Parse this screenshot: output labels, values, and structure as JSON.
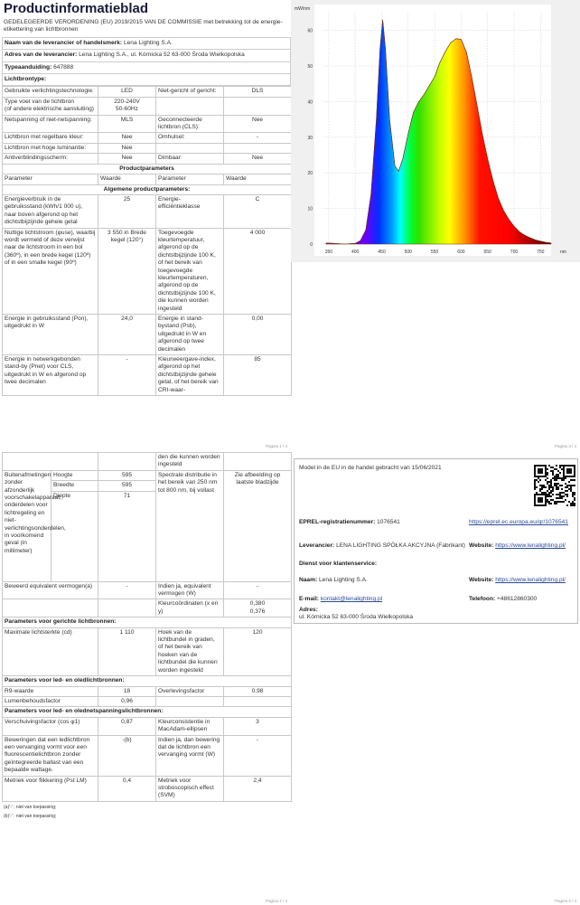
{
  "page1": {
    "title": "Productinformatieblad",
    "subtitle": "GEDELEGEERDE VERORDENING (EU) 2019/2015 VAN DE COMMISSIE met betrekking tot de energie-etikettering van lichtbronnen",
    "supplier": {
      "label": "Naam van de leverancier of handelsmerk:",
      "value": "Lena Lighting S.A."
    },
    "address": {
      "label": "Adres van de leverancier:",
      "value": "Lena Lighting S.A., ul. Kórnicka 52 63-000 Środa Wielkopolska"
    },
    "type": {
      "label": "Typeaanduiding:",
      "value": "647888"
    },
    "lichtbrontype_heading": "Lichtbrontype:",
    "light_rows": [
      [
        "Gebruikte verlichtingstechnologie:",
        "LED",
        "Niet-gericht of gericht:",
        "DLS"
      ],
      [
        "Type voet van de lichtbron\n(of andere elektrische aansluiting)",
        "220-240V\n50-60Hz",
        "",
        ""
      ],
      [
        "Netspanning of niet-netspanning:",
        "MLS",
        "Geconnecteerde lichtbron (CLS):",
        "Nee"
      ],
      [
        "Lichtbron met regelbare kleur:",
        "Nee",
        "Omhulsel:",
        "-"
      ],
      [
        "Lichtbron met hoge luminantie:",
        "Nee",
        "",
        ""
      ],
      [
        "Antiverblindingsscherm:",
        "Nee",
        "Dimbaar:",
        "Nee"
      ]
    ],
    "params_heading": "Productparameters",
    "param_headers": [
      "Parameter",
      "Waarde",
      "Parameter",
      "Waarde"
    ],
    "general_heading": "Algemene productparameters:",
    "general_rows": [
      [
        "Energieverbruik in de gebruiksstand (kWh/1 000 u), naar boven afgerond op het dichtstbijzijnde gehele getal",
        "25",
        "Energie-efficiëntieklasse",
        "C"
      ],
      [
        "Nuttige lichtstroom (φuse), waarbij wordt vermeld of deze verwijst naar de lichtstroom in een bol (360º), in een brede kegel (120º) of in een smalle kegel (90º)",
        "3 550 in Brede kegel (120°)",
        "Toegevoegde kleurtemperatuur, afgerond op de dichtstbijzijnde 100 K, of het bereik van toegevoegde kleurtemperaturen, afgerond op de dichtstbijzijnde 100 K, die kunnen worden ingesteld",
        "4 000"
      ],
      [
        "Energie in gebruiksstand (Pon), uitgedrukt in W",
        "24,0",
        "Energie in stand-bystand (Psb), uitgedrukt in W en afgerond op twee decimalen",
        "0,00"
      ],
      [
        "Energie in netwerkgebonden stand-by (Pnet) voor CLS, uitgedrukt in W en afgerond op twee decimalen",
        "-",
        "Kleurweergave-index, afgerond op het dichtstbijzijnde gehele getal, of het bereik van CRI-waar-",
        "85"
      ]
    ],
    "page_label": "Pagina 1 / 4"
  },
  "page2": {
    "top_row": [
      "",
      "",
      "den die kunnen worden ingesteld",
      ""
    ],
    "dims": {
      "label": "Buitenafmetingen zonder afzonderlijk voorschakelapparaat, onderdelen voor lichtregeling en niet-verlichtingsonderdelen, in voorkomend geval (in millimeter)",
      "items": [
        {
          "name": "Hoogte",
          "value": "595"
        },
        {
          "name": "Breedte",
          "value": "595"
        },
        {
          "name": "Diepte",
          "value": "71"
        }
      ],
      "param": "Spectrale distributie in het bereik van 250 nm tot 800 nm, bij vollast",
      "param_value": "Zie afbeelding op laatste bladzijde"
    },
    "rows": [
      [
        "Beweerd equivalent vermogen(a)",
        "-",
        "Indien ja, equivalent vermogen (W)",
        "-"
      ],
      [
        "",
        "",
        "Kleurcoördinaten (x en y)",
        "0,380\n0,376"
      ],
      {
        "section": "Parameters voor gerichte lichtbronnen:"
      },
      [
        "Maximale lichtsterkte (cd)",
        "1 110",
        "Hoek van de lichtbundel in graden, of het bereik van hoeken van de lichtbundel die kunnen worden ingesteld",
        "120"
      ],
      {
        "section": "Parameters voor led- en oledlichtbronnen:"
      },
      [
        "R9-waarde",
        "18",
        "Overlevingsfactor",
        "0,98"
      ],
      [
        "Lumenbehoudsfactor",
        "0,96",
        "",
        ""
      ],
      {
        "section": "Parameters voor led- en olednetspanningslichtbronnen:"
      },
      [
        "Verschuivingsfactor (cos φ1)",
        "0,87",
        "Kleurconsistentie in MacAdam-ellipsen",
        "3"
      ],
      [
        "Beweringen dat een ledlichtbron een vervanging vormt voor een fluorescentielichtbron zonder geïntegreerde ballast van een bepaalde wattage.",
        "-(b)",
        "Indien ja, dan bewering dat de lichtbron een vervanging vormt (W)",
        "-"
      ],
      [
        "Metriek voor flikkering (Pst LM)",
        "0,4",
        "Metriek voor stroboscopisch effect (SVM)",
        "2,4"
      ]
    ],
    "footnotes": [
      "(a)'-' : niet van toepassing;",
      "(b)'-' : niet van toepassing;"
    ],
    "page_label": "Pagina 2 / 4"
  },
  "page3": {
    "page_label": "Pagina 3 / 4"
  },
  "page4": {
    "market": "Model in de EU in de handel gebracht van 15/06/2021",
    "eprel": {
      "label": "EPREL-registratienummer:",
      "value": "1076541",
      "link": "https://eprel.ec.europa.eu/qr/1076541"
    },
    "supplier": {
      "label": "Leverancier:",
      "value": "LENA LIGHTING SPÓŁKA AKCYJNA (Fabrikant)"
    },
    "website_label": "Website:",
    "website": "https://www.lenalighting.pl/",
    "service_heading": "Dienst voor klantenservice:",
    "name": {
      "label": "Naam:",
      "value": "Lena Lighting S.A."
    },
    "email": {
      "label": "E-mail:",
      "value": "kontakt@lenalighting.pl"
    },
    "phone": {
      "label": "Telefoon:",
      "value": "+48612860300"
    },
    "address": {
      "label": "Adres:",
      "value": "ul. Kórnicka 52 63-000 Środa Wielkopolska"
    },
    "page_label": "Pagina 4 / 4"
  },
  "chart_data": {
    "type": "area",
    "title": "",
    "xlabel": "nm",
    "ylabel": "mW/nm",
    "xlim": [
      340,
      770
    ],
    "ylim": [
      0,
      65
    ],
    "xticks": [
      350,
      400,
      450,
      500,
      550,
      600,
      650,
      700,
      750
    ],
    "yticks": [
      0,
      10,
      20,
      30,
      40,
      50,
      60
    ],
    "grid": true,
    "fill": "visible-spectrum gradient",
    "x": [
      345,
      360,
      380,
      400,
      410,
      420,
      430,
      440,
      447,
      452,
      457,
      465,
      475,
      482,
      490,
      500,
      510,
      520,
      530,
      540,
      550,
      560,
      570,
      580,
      590,
      600,
      610,
      620,
      630,
      640,
      650,
      660,
      670,
      680,
      690,
      700,
      710,
      720,
      730,
      740,
      750,
      760,
      770
    ],
    "y": [
      0.3,
      0.2,
      0,
      0.2,
      1,
      4,
      14,
      35,
      55,
      63,
      55,
      35,
      22,
      20.5,
      24,
      31,
      37,
      40,
      42,
      44.5,
      47,
      51,
      54,
      56.5,
      57.7,
      57.5,
      54,
      47,
      39,
      31,
      24,
      18,
      13,
      9.5,
      7,
      5,
      3.5,
      2.5,
      1.8,
      1.2,
      0.8,
      0.5,
      0.3
    ]
  }
}
